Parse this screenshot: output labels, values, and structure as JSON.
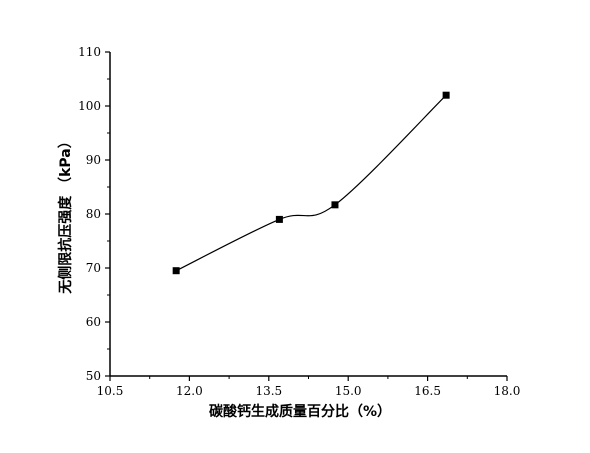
{
  "chart_data": {
    "type": "line",
    "title": "",
    "xlabel": "碳酸钙生成质量百分比（%）",
    "ylabel": "无侧限抗压强度 （kPa）",
    "xlim": [
      10.5,
      18.0
    ],
    "ylim": [
      50,
      110
    ],
    "x_ticks": [
      "10.5",
      "12.0",
      "13.5",
      "15.0",
      "16.5",
      "18.0"
    ],
    "y_ticks": [
      "50",
      "60",
      "70",
      "80",
      "90",
      "100",
      "110"
    ],
    "line_style": "smooth",
    "marker": "square",
    "grid": false,
    "legend": "none",
    "series": [
      {
        "color": "#000000",
        "x": [
          11.75,
          13.7,
          14.75,
          16.85
        ],
        "y": [
          69.5,
          79.0,
          81.7,
          102.0
        ]
      }
    ]
  }
}
